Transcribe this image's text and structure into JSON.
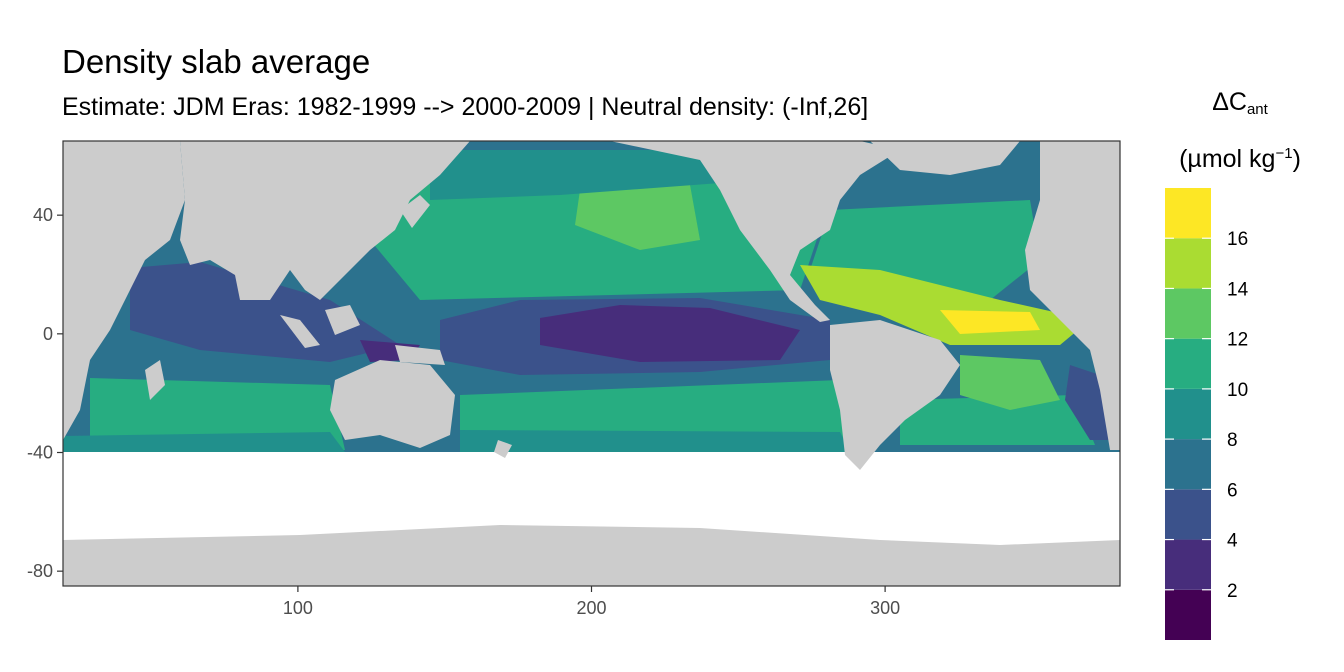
{
  "title": "Density slab average",
  "subtitle": "Estimate: JDM Eras: 1982-1999 --> 2000-2009 | Neutral density: (-Inf,26]",
  "legend": {
    "symbol": "ΔC",
    "subscript": "ant",
    "units_prefix": "(µmol kg",
    "units_superscript": "−1",
    "units_suffix": ")",
    "breaks": [
      2,
      4,
      6,
      8,
      10,
      12,
      14,
      16
    ],
    "bins": [
      {
        "min": 0,
        "max": 2,
        "color": "#440154"
      },
      {
        "min": 2,
        "max": 4,
        "color": "#472D7B"
      },
      {
        "min": 4,
        "max": 6,
        "color": "#3B528B"
      },
      {
        "min": 6,
        "max": 8,
        "color": "#2C728E"
      },
      {
        "min": 8,
        "max": 10,
        "color": "#21908C"
      },
      {
        "min": 10,
        "max": 12,
        "color": "#27AD81"
      },
      {
        "min": 12,
        "max": 14,
        "color": "#5DC863"
      },
      {
        "min": 14,
        "max": 16,
        "color": "#AADC32"
      },
      {
        "min": 16,
        "max": 18,
        "color": "#FDE725"
      }
    ]
  },
  "map": {
    "x_ticks": [
      100,
      200,
      300
    ],
    "y_ticks": [
      40,
      0,
      -40,
      -80
    ],
    "xlim": [
      20,
      380
    ],
    "ylim": [
      -85,
      65
    ],
    "land_color": "#CCCCCC",
    "gridline_color": "#EBEBEB",
    "panel_background": "#FFFFFF"
  }
}
